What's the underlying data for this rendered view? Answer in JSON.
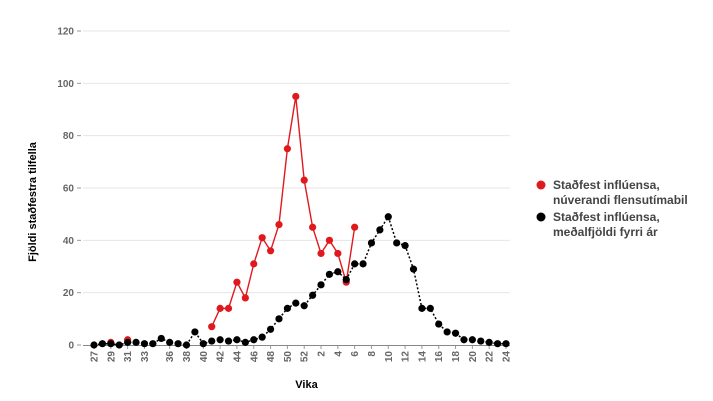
{
  "chart_data": {
    "type": "line",
    "title": "",
    "xlabel": "Vika",
    "ylabel": "Fjöldi staðfestra tilfella",
    "ylim": [
      0,
      120
    ],
    "yticks": [
      0,
      20,
      40,
      60,
      80,
      100,
      120
    ],
    "categories": [
      "27",
      "28",
      "29",
      "30",
      "31",
      "32",
      "33",
      "34",
      "35",
      "36",
      "37",
      "38",
      "39",
      "40",
      "41",
      "42",
      "43",
      "44",
      "45",
      "46",
      "47",
      "48",
      "49",
      "50",
      "51",
      "52",
      "1",
      "2",
      "3",
      "4",
      "5",
      "6",
      "7",
      "8",
      "9",
      "10",
      "11",
      "12",
      "13",
      "14",
      "15",
      "16",
      "17",
      "18",
      "19",
      "20",
      "21",
      "22",
      "23",
      "24"
    ],
    "tick_labels": [
      "27",
      "29",
      "31",
      "33",
      "36",
      "38",
      "40",
      "42",
      "44",
      "46",
      "48",
      "50",
      "52",
      "2",
      "4",
      "6",
      "8",
      "10",
      "12",
      "14",
      "16",
      "18",
      "20",
      "22",
      "24"
    ],
    "grid": true,
    "legend_position": "right",
    "series": [
      {
        "name": "Staðfest inflúensa, núverandi flensutímabil",
        "name_lines": [
          "Staðfest inflúensa,",
          "núverandi flensutímabil"
        ],
        "color": "#e0191e",
        "line_style": "solid",
        "values": [
          null,
          null,
          1,
          null,
          2,
          null,
          null,
          null,
          null,
          null,
          null,
          null,
          null,
          null,
          7,
          14,
          14,
          24,
          18,
          31,
          41,
          36,
          46,
          75,
          95,
          63,
          45,
          35,
          40,
          35,
          24,
          45,
          null,
          null,
          null,
          null,
          null,
          null,
          null,
          null,
          null,
          null,
          null,
          null,
          null,
          null,
          null,
          null,
          null,
          null
        ]
      },
      {
        "name": "Staðfest inflúensa, meðalfjöldi fyrri ár",
        "name_lines": [
          "Staðfest inflúensa,",
          "meðalfjöldi fyrri ár"
        ],
        "color": "#000000",
        "line_style": "dotted",
        "values": [
          0,
          0.5,
          0.5,
          0,
          1,
          1,
          0.5,
          0.5,
          2.5,
          1,
          0.5,
          0,
          5,
          0.5,
          1.5,
          2,
          1.5,
          2,
          1,
          2,
          3,
          6,
          10,
          14,
          16,
          15,
          19,
          23,
          27,
          28,
          25,
          31,
          31,
          39,
          44,
          49,
          39,
          38,
          29,
          14,
          14,
          8,
          5,
          4.5,
          2,
          2,
          1.5,
          1,
          0.5,
          0.5
        ]
      }
    ]
  }
}
